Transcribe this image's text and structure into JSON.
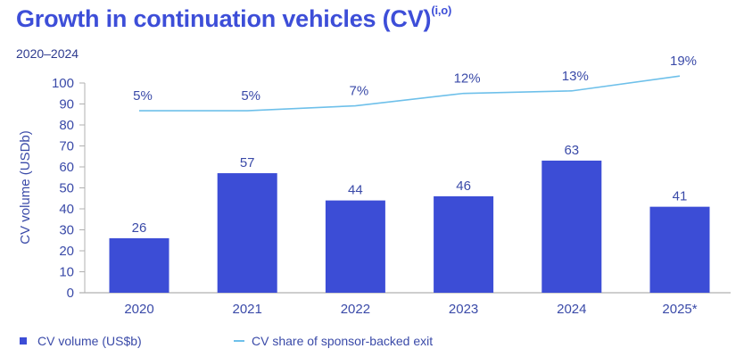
{
  "title": "Growth in continuation vehicles (CV)",
  "title_superscript": "(i,o)",
  "subtitle": "2020–2024",
  "colors": {
    "bar": "#3c4dd6",
    "line": "#6ec0ea",
    "text": "#3a4aa8",
    "title": "#3d4ed8",
    "axis": "#b0b0b0"
  },
  "legend": {
    "bar_label": "CV volume (US$b)",
    "line_label": "CV share of sponsor-backed exit"
  },
  "chart_data": {
    "type": "bar",
    "title": "Growth in continuation vehicles (CV)",
    "subtitle": "2020–2024",
    "categories": [
      "2020",
      "2021",
      "2022",
      "2023",
      "2024",
      "2025*"
    ],
    "series": [
      {
        "name": "CV volume (US$b)",
        "type": "bar",
        "values": [
          26,
          57,
          44,
          46,
          63,
          41
        ],
        "labels": [
          "26",
          "57",
          "44",
          "46",
          "63",
          "41"
        ]
      },
      {
        "name": "CV share of sponsor-backed exit",
        "type": "line",
        "values": [
          5,
          5,
          7,
          12,
          13,
          19
        ],
        "labels": [
          "5%",
          "5%",
          "7%",
          "12%",
          "13%",
          "19%"
        ],
        "unit": "%"
      }
    ],
    "xlabel": "",
    "ylabel": "CV volume (USDb)",
    "ylim": [
      0,
      100
    ],
    "yticks": [
      0,
      10,
      20,
      30,
      40,
      50,
      60,
      70,
      80,
      90,
      100
    ],
    "grid": false,
    "legend_position": "bottom-left"
  }
}
